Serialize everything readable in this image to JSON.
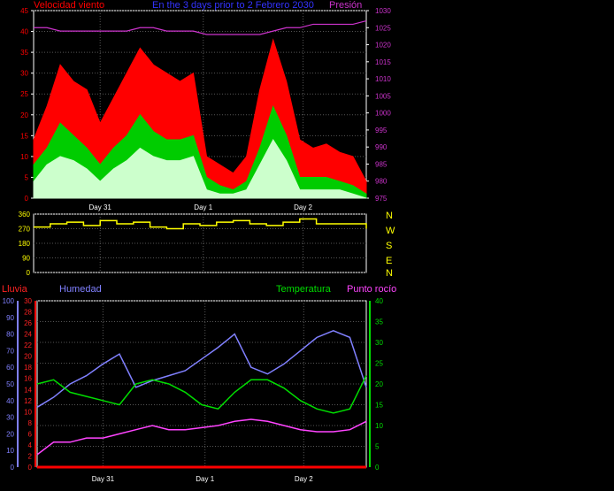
{
  "header": {
    "wind_label": "Velocidad viento",
    "period_label": "En the 3 days prior to 2 Febrero 2030",
    "pressure_label": "Presión"
  },
  "lower_header": {
    "rain_label": "Lluvia",
    "humidity_label": "Humedad",
    "temperature_label": "Temperatura",
    "dewpoint_label": "Punto rocío"
  },
  "directions": [
    "N",
    "W",
    "S",
    "E",
    "N"
  ],
  "colors": {
    "background": "#000000",
    "axis": "#ffffff",
    "grid": "#555555",
    "gust": "#ff0000",
    "wind_avg": "#00cc00",
    "wind_min": "#ccffcc",
    "pressure": "#cc33cc",
    "direction": "#ffff00",
    "humidity": "#8080ff",
    "temperature": "#00dd00",
    "dewpoint": "#ff44ff",
    "rain": "#ff0000"
  },
  "chart_data": [
    {
      "type": "area",
      "name": "wind",
      "y_left_ticks": [
        0,
        5,
        10,
        15,
        20,
        25,
        30,
        35,
        40,
        45
      ],
      "y_right_ticks": [
        975,
        980,
        985,
        990,
        995,
        1000,
        1005,
        1010,
        1015,
        1020,
        1025,
        1030
      ],
      "ylim": [
        0,
        45
      ],
      "y2lim": [
        975,
        1030
      ],
      "x_labels": [
        "Day 31",
        "Day 1",
        "Day 2"
      ],
      "x_label_pos": [
        0.2,
        0.51,
        0.81
      ],
      "x": [
        0,
        0.04,
        0.08,
        0.12,
        0.16,
        0.2,
        0.24,
        0.28,
        0.32,
        0.36,
        0.4,
        0.44,
        0.48,
        0.52,
        0.56,
        0.6,
        0.64,
        0.68,
        0.72,
        0.76,
        0.8,
        0.84,
        0.88,
        0.92,
        0.96,
        1.0
      ],
      "series": [
        {
          "name": "gust",
          "values": [
            14,
            22,
            32,
            28,
            26,
            18,
            24,
            30,
            36,
            32,
            30,
            28,
            30,
            10,
            8,
            6,
            10,
            26,
            38,
            28,
            14,
            12,
            13,
            11,
            10,
            4
          ]
        },
        {
          "name": "average",
          "values": [
            8,
            12,
            18,
            15,
            12,
            8,
            12,
            15,
            20,
            16,
            14,
            14,
            15,
            5,
            3,
            2,
            4,
            12,
            22,
            15,
            5,
            5,
            5,
            4,
            3,
            1
          ]
        },
        {
          "name": "minimum",
          "values": [
            4,
            8,
            10,
            9,
            7,
            4,
            7,
            9,
            12,
            10,
            9,
            9,
            10,
            2,
            1,
            1,
            2,
            8,
            14,
            9,
            2,
            2,
            2,
            2,
            1,
            0
          ]
        },
        {
          "name": "pressure",
          "values": [
            1025,
            1025,
            1024,
            1024,
            1024,
            1024,
            1024,
            1024,
            1025,
            1025,
            1024,
            1024,
            1024,
            1023,
            1023,
            1023,
            1023,
            1023,
            1024,
            1025,
            1025,
            1026,
            1026,
            1026,
            1026,
            1027
          ]
        }
      ]
    },
    {
      "type": "line",
      "name": "direction",
      "y_ticks": [
        0,
        90,
        180,
        270,
        360
      ],
      "ylim": [
        0,
        360
      ],
      "x": [
        0,
        0.05,
        0.1,
        0.15,
        0.2,
        0.25,
        0.3,
        0.35,
        0.4,
        0.45,
        0.5,
        0.55,
        0.6,
        0.65,
        0.7,
        0.75,
        0.8,
        0.85,
        0.9,
        0.95,
        1.0
      ],
      "values": [
        280,
        300,
        310,
        290,
        320,
        300,
        310,
        280,
        270,
        300,
        290,
        310,
        320,
        300,
        290,
        310,
        330,
        300,
        300,
        300,
        270
      ]
    },
    {
      "type": "line",
      "name": "climate",
      "y_left1_ticks": [
        0,
        10,
        20,
        30,
        40,
        50,
        60,
        70,
        80,
        90,
        100
      ],
      "y_left2_ticks": [
        0,
        2,
        4,
        6,
        8,
        10,
        12,
        14,
        16,
        18,
        20,
        22,
        24,
        26,
        28,
        30
      ],
      "y_right_ticks": [
        0,
        5,
        10,
        15,
        20,
        25,
        30,
        35,
        40
      ],
      "x_labels": [
        "Day 31",
        "Day 1",
        "Day 2"
      ],
      "x_label_pos": [
        0.2,
        0.51,
        0.81
      ],
      "x": [
        0,
        0.05,
        0.1,
        0.15,
        0.2,
        0.25,
        0.3,
        0.35,
        0.4,
        0.45,
        0.5,
        0.55,
        0.6,
        0.65,
        0.7,
        0.75,
        0.8,
        0.85,
        0.9,
        0.95,
        1.0
      ],
      "series": [
        {
          "name": "humedad",
          "axis": "left1",
          "ylim": [
            0,
            100
          ],
          "values": [
            36,
            42,
            50,
            55,
            62,
            68,
            48,
            52,
            55,
            58,
            65,
            72,
            80,
            60,
            56,
            62,
            70,
            78,
            82,
            78,
            48
          ]
        },
        {
          "name": "temperatura",
          "axis": "right",
          "ylim": [
            0,
            40
          ],
          "values": [
            20,
            21,
            18,
            17,
            16,
            15,
            20,
            21,
            20,
            18,
            15,
            14,
            18,
            21,
            21,
            19,
            16,
            14,
            13,
            14,
            22
          ]
        },
        {
          "name": "punto_rocio",
          "axis": "right",
          "ylim": [
            0,
            40
          ],
          "values": [
            3,
            6,
            6,
            7,
            7,
            8,
            9,
            10,
            9,
            9,
            9.5,
            10,
            11,
            11.5,
            11,
            10,
            9,
            8.5,
            8.5,
            9,
            11
          ]
        },
        {
          "name": "lluvia",
          "axis": "left2",
          "ylim": [
            0,
            30
          ],
          "values": [
            0,
            0,
            0,
            0,
            0,
            0,
            0,
            0,
            0,
            0,
            0,
            0,
            0,
            0,
            0,
            0,
            0,
            0,
            0,
            0,
            0
          ]
        }
      ]
    }
  ]
}
